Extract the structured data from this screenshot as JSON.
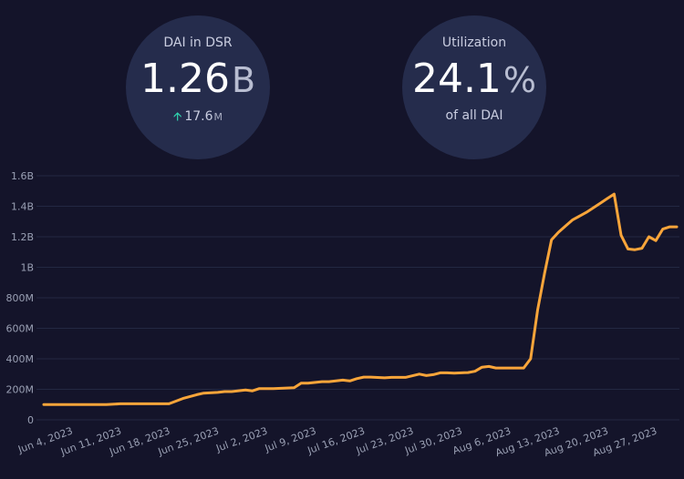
{
  "stats": [
    {
      "label": "DAI in DSR",
      "value": "1.26",
      "unit": "B",
      "change": "17.6",
      "change_unit": "M",
      "change_direction": "up"
    },
    {
      "label": "Utilization",
      "value": "24.1",
      "unit": "%",
      "sub": "of all DAI"
    }
  ],
  "colors": {
    "background": "#14142a",
    "line": "#f9a53a",
    "up": "#2fd6b0",
    "circle": "#252c4c"
  },
  "chart_data": {
    "type": "line",
    "title": "",
    "xlabel": "",
    "ylabel": "",
    "grid": true,
    "legend": "none",
    "ylim": [
      0,
      1600000000
    ],
    "xlim": [
      "2023-05-31",
      "2023-08-30"
    ],
    "y_tick_labels": [
      "0",
      "200M",
      "400M",
      "600M",
      "800M",
      "1B",
      "1.2B",
      "1.4B",
      "1.6B"
    ],
    "y_tick_values": [
      0,
      200000000,
      400000000,
      600000000,
      800000000,
      1000000000,
      1200000000,
      1400000000,
      1600000000
    ],
    "x_tick_labels": [
      "Jun 4, 2023",
      "Jun 11, 2023",
      "Jun 18, 2023",
      "Jun 25, 2023",
      "Jul 2, 2023",
      "Jul 9, 2023",
      "Jul 16, 2023",
      "Jul 23, 2023",
      "Jul 30, 2023",
      "Aug 6, 2023",
      "Aug 13, 2023",
      "Aug 20, 2023",
      "Aug 27, 2023"
    ],
    "x_tick_values": [
      "2023-06-04",
      "2023-06-11",
      "2023-06-18",
      "2023-06-25",
      "2023-07-02",
      "2023-07-09",
      "2023-07-16",
      "2023-07-23",
      "2023-07-30",
      "2023-08-06",
      "2023-08-13",
      "2023-08-20",
      "2023-08-27"
    ],
    "series": [
      {
        "x": [
          "2023-05-31",
          "2023-06-05",
          "2023-06-09",
          "2023-06-11",
          "2023-06-12",
          "2023-06-16",
          "2023-06-18",
          "2023-06-20",
          "2023-06-22",
          "2023-06-23",
          "2023-06-25",
          "2023-06-26",
          "2023-06-27",
          "2023-06-29",
          "2023-06-30",
          "2023-07-01",
          "2023-07-02",
          "2023-07-03",
          "2023-07-06",
          "2023-07-07",
          "2023-07-08",
          "2023-07-10",
          "2023-07-11",
          "2023-07-13",
          "2023-07-14",
          "2023-07-15",
          "2023-07-16",
          "2023-07-17",
          "2023-07-19",
          "2023-07-20",
          "2023-07-22",
          "2023-07-24",
          "2023-07-25",
          "2023-07-26",
          "2023-07-27",
          "2023-07-28",
          "2023-07-29",
          "2023-07-31",
          "2023-08-01",
          "2023-08-02",
          "2023-08-03",
          "2023-08-04",
          "2023-08-06",
          "2023-08-07",
          "2023-08-08",
          "2023-08-09",
          "2023-08-10",
          "2023-08-11",
          "2023-08-12",
          "2023-08-13",
          "2023-08-14",
          "2023-08-15",
          "2023-08-17",
          "2023-08-19",
          "2023-08-20",
          "2023-08-21",
          "2023-08-22",
          "2023-08-23",
          "2023-08-24",
          "2023-08-25",
          "2023-08-26",
          "2023-08-27",
          "2023-08-28",
          "2023-08-29",
          "2023-08-30"
        ],
        "y": [
          100000000,
          100000000,
          100000000,
          105000000,
          105000000,
          105000000,
          105000000,
          140000000,
          165000000,
          175000000,
          180000000,
          185000000,
          185000000,
          195000000,
          190000000,
          205000000,
          205000000,
          205000000,
          210000000,
          240000000,
          240000000,
          250000000,
          250000000,
          260000000,
          255000000,
          270000000,
          280000000,
          280000000,
          275000000,
          278000000,
          278000000,
          300000000,
          290000000,
          296000000,
          308000000,
          308000000,
          306000000,
          310000000,
          318000000,
          345000000,
          350000000,
          340000000,
          340000000,
          340000000,
          340000000,
          400000000,
          720000000,
          960000000,
          1180000000,
          1230000000,
          1270000000,
          1310000000,
          1360000000,
          1420000000,
          1450000000,
          1480000000,
          1210000000,
          1120000000,
          1115000000,
          1125000000,
          1200000000,
          1175000000,
          1250000000,
          1265000000,
          1265000000
        ]
      }
    ]
  }
}
